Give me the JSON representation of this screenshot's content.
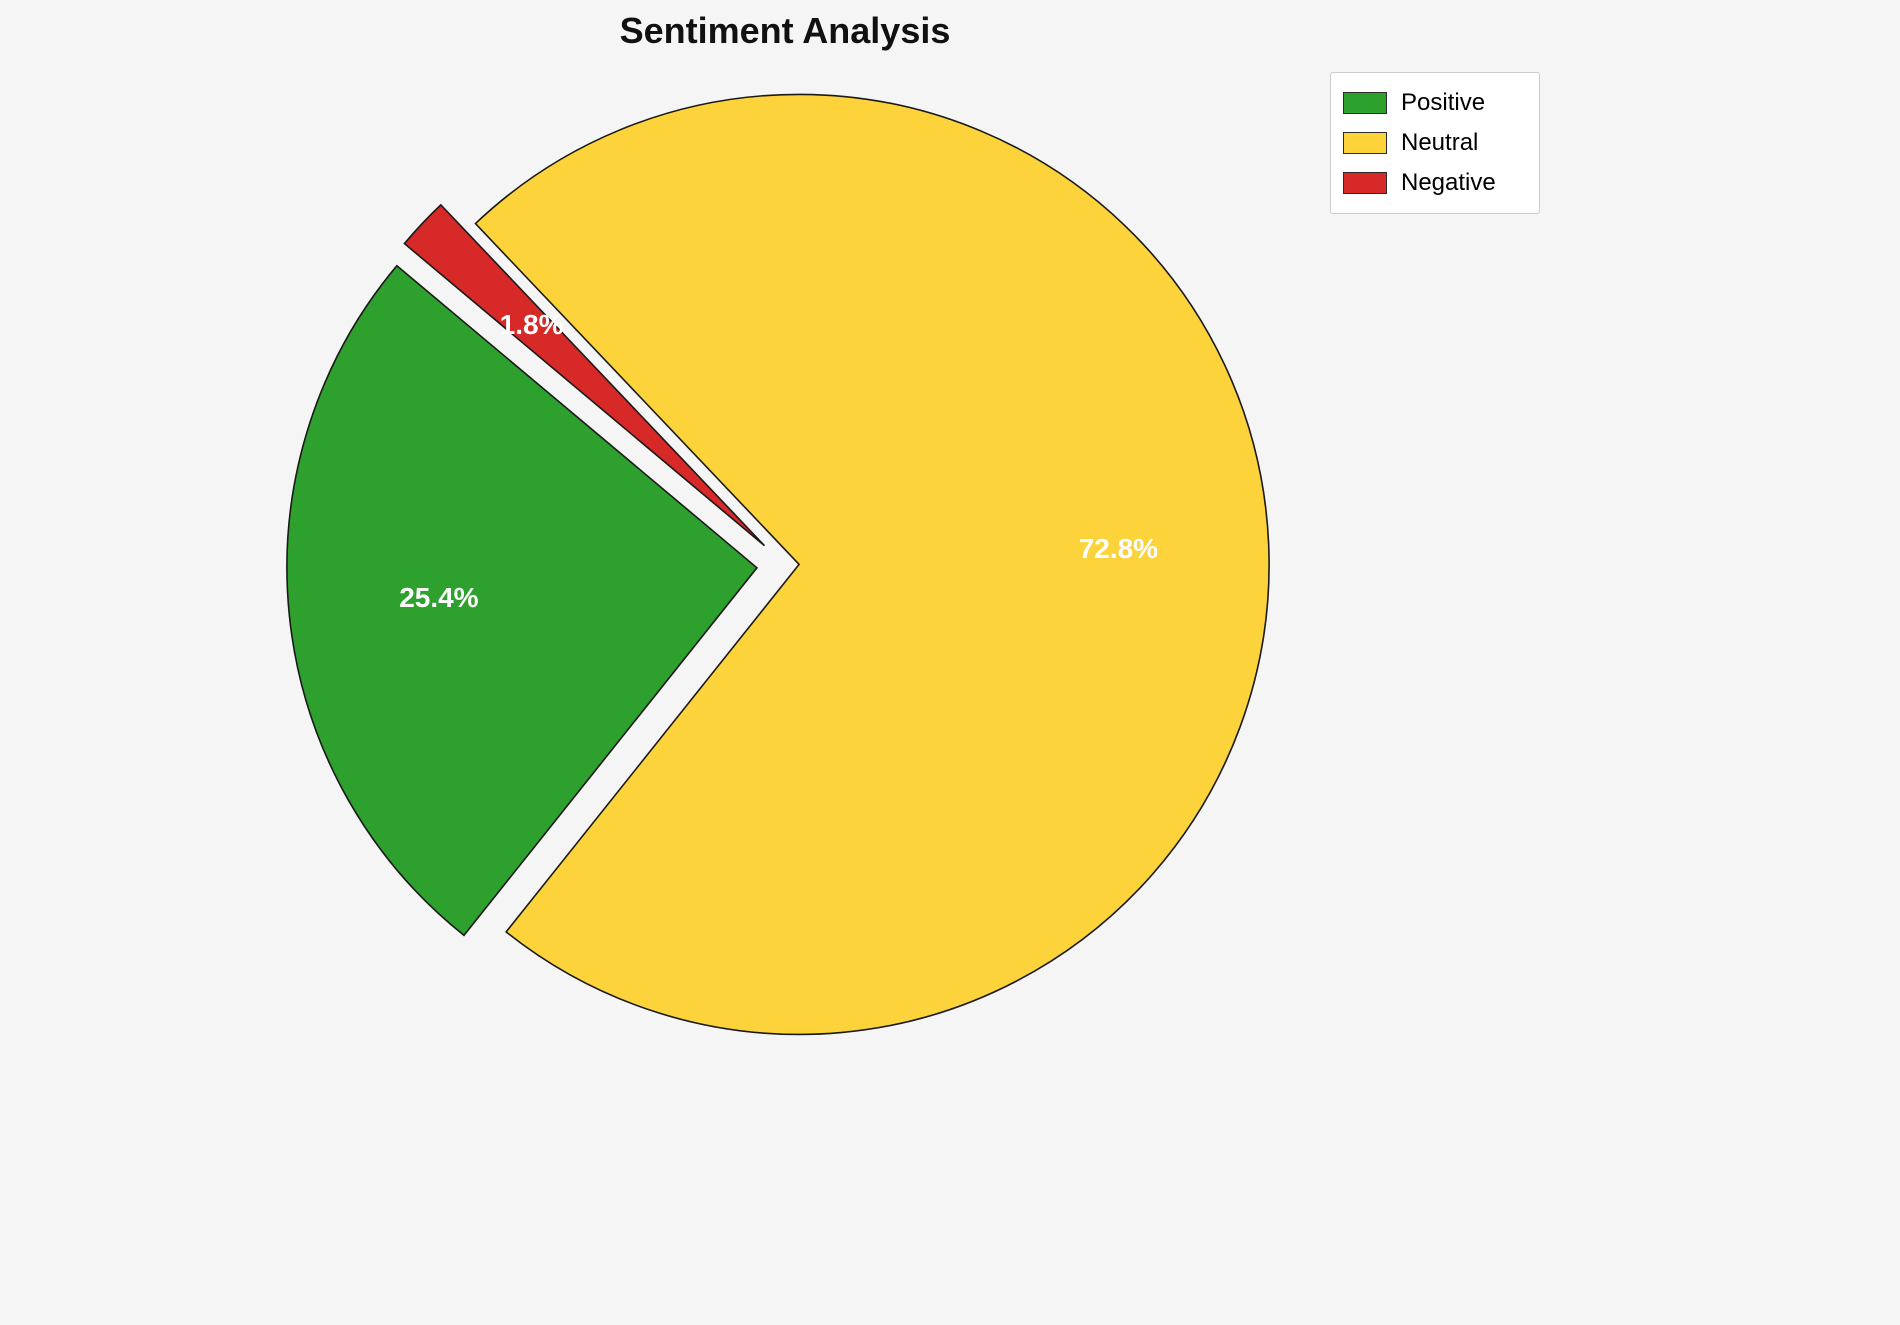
{
  "chart_data": {
    "type": "pie",
    "title": "Sentiment Analysis",
    "slices": [
      {
        "label": "Positive",
        "value": 25.4,
        "pct_label": "25.4%",
        "color": "#2ea02e",
        "explode": 0.06
      },
      {
        "label": "Neutral",
        "value": 72.8,
        "pct_label": "72.8%",
        "color": "#fdd33c",
        "explode": 0.03
      },
      {
        "label": "Negative",
        "value": 1.8,
        "pct_label": "1.8%",
        "color": "#d62928",
        "explode": 0.06
      }
    ],
    "start_angle": 140,
    "direction": "counterclockwise",
    "slice_label_color": "#ffffff",
    "slice_label_distance": 0.68,
    "edge_color": "#1a1a1a",
    "background": "#f5f5f5",
    "legend": {
      "position": "upper right",
      "entries": [
        "Positive",
        "Neutral",
        "Negative"
      ]
    }
  }
}
